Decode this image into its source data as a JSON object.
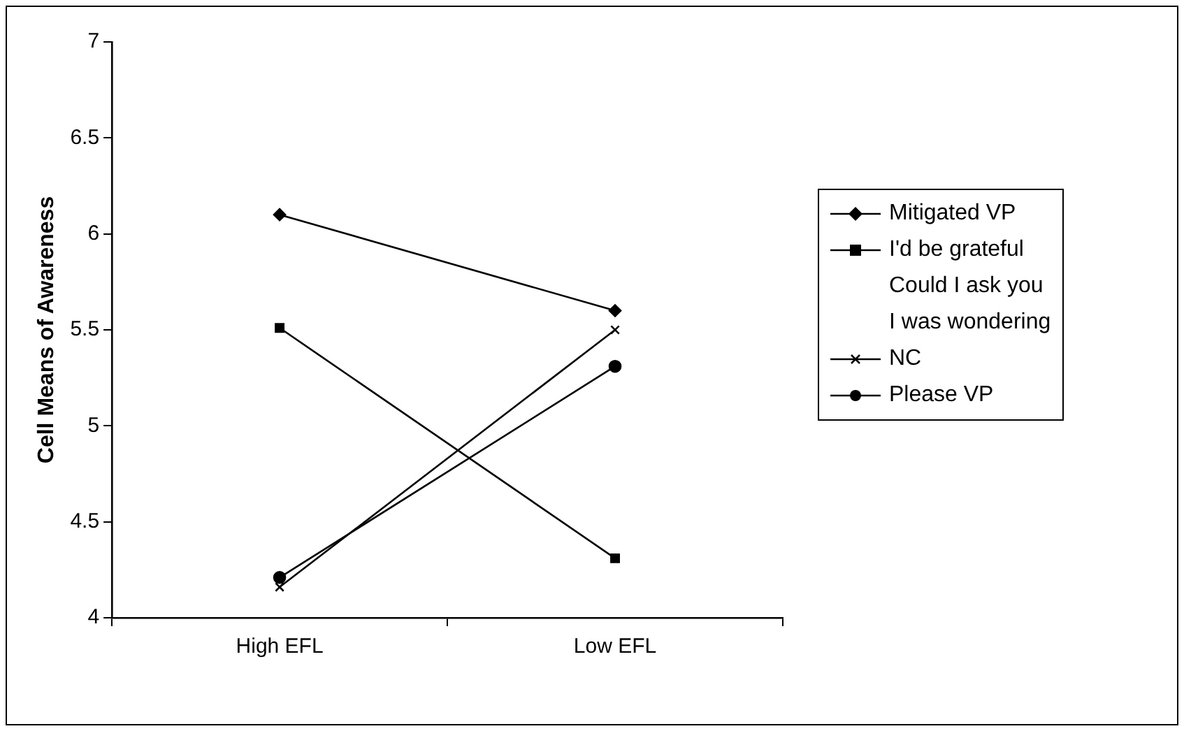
{
  "chart_data": {
    "type": "line",
    "ylabel": "Cell Means of Awareness",
    "categories": [
      "High EFL",
      "Low EFL"
    ],
    "ylim": [
      4,
      7
    ],
    "yticks": [
      4,
      4.5,
      5,
      5.5,
      6,
      6.5,
      7
    ],
    "grid": false,
    "legend": "right",
    "line_style": "solid",
    "series": [
      {
        "name": "Mitigated VP",
        "color": "#000000",
        "marker": "diamond",
        "values": [
          6.1,
          5.6
        ]
      },
      {
        "name": "I'd be grateful",
        "color": "#000000",
        "marker": "square",
        "values": [
          5.51,
          4.31
        ]
      },
      {
        "name": "Could I ask you",
        "marker": "none",
        "values": [
          null,
          null
        ]
      },
      {
        "name": "I was wondering",
        "marker": "none",
        "values": [
          null,
          null
        ]
      },
      {
        "name": "NC",
        "color": "#000000",
        "marker": "cross",
        "values": [
          4.16,
          5.5
        ]
      },
      {
        "name": "Please VP",
        "color": "#000000",
        "marker": "circle",
        "values": [
          4.21,
          5.31
        ]
      }
    ]
  }
}
